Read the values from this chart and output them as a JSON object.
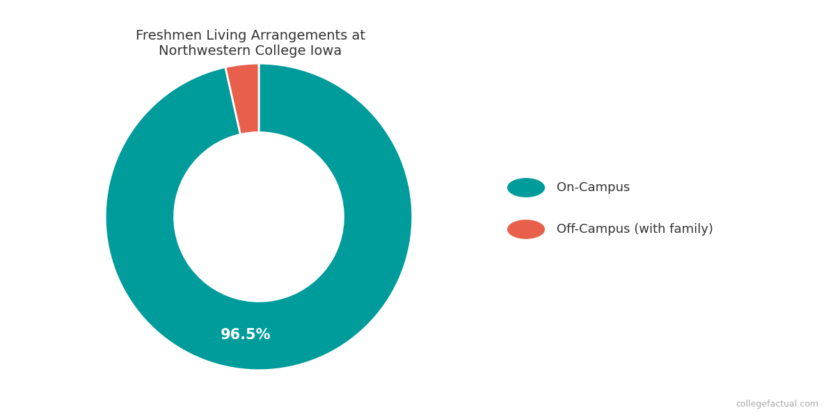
{
  "title": "Freshmen Living Arrangements at\nNorthwestern College Iowa",
  "slices": [
    96.5,
    3.5
  ],
  "labels": [
    "On-Campus",
    "Off-Campus (with family)"
  ],
  "colors": [
    "#009B9B",
    "#E8604C"
  ],
  "pct_label": "96.5%",
  "pct_label_color": "#ffffff",
  "background_color": "#ffffff",
  "title_fontsize": 14,
  "legend_fontsize": 13,
  "pct_fontsize": 15,
  "watermark": "collegefactual.com",
  "donut_width": 0.45,
  "start_angle": 90
}
